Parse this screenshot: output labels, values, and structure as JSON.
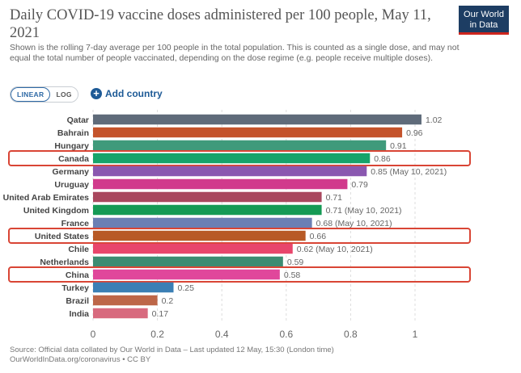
{
  "header": {
    "title": "Daily COVID-19 vaccine doses administered per 100 people, May 11, 2021",
    "subtitle": "Shown is the rolling 7-day average per 100 people in the total population. This is counted as a single dose, and may not equal the total number of people vaccinated, depending on the dose regime (e.g. people receive multiple doses).",
    "logo_line1": "Our World",
    "logo_line2": "in Data"
  },
  "controls": {
    "linear_label": "LINEAR",
    "log_label": "LOG",
    "add_country_label": "Add country"
  },
  "chart_data": {
    "type": "bar",
    "orientation": "horizontal",
    "categories": [
      "Qatar",
      "Bahrain",
      "Hungary",
      "Canada",
      "Germany",
      "Uruguay",
      "United Arab Emirates",
      "United Kingdom",
      "France",
      "United States",
      "Chile",
      "Netherlands",
      "China",
      "Turkey",
      "Brazil",
      "India"
    ],
    "values": [
      1.02,
      0.96,
      0.91,
      0.86,
      0.85,
      0.79,
      0.71,
      0.71,
      0.68,
      0.66,
      0.62,
      0.59,
      0.58,
      0.25,
      0.2,
      0.17
    ],
    "value_labels": [
      "1.02",
      "0.96",
      "0.91",
      "0.86",
      "0.85 (May 10, 2021)",
      "0.79",
      "0.71",
      "0.71 (May 10, 2021)",
      "0.68 (May 10, 2021)",
      "0.66",
      "0.62 (May 10, 2021)",
      "0.59",
      "0.58",
      "0.25",
      "0.2",
      "0.17"
    ],
    "colors": [
      "#5f6b7a",
      "#c4532b",
      "#3f9a7b",
      "#16a36a",
      "#8a58b0",
      "#d13a8c",
      "#a9485e",
      "#159a55",
      "#6b7fb4",
      "#b85a26",
      "#e8466c",
      "#3c8c72",
      "#e0479b",
      "#3b7fb5",
      "#bd6648",
      "#d86a7e"
    ],
    "highlighted": [
      "Canada",
      "United States",
      "China"
    ],
    "highlight_color": "#d94535",
    "xlim": [
      0,
      1.1
    ],
    "xticks": [
      0,
      0.2,
      0.4,
      0.6,
      0.8,
      1
    ],
    "xtick_labels": [
      "0",
      "0.2",
      "0.4",
      "0.6",
      "0.8",
      "1"
    ],
    "grid": true
  },
  "footer": {
    "source_line1": "Source: Official data collated by Our World in Data – Last updated 12 May, 15:30 (London time)",
    "source_line2": "OurWorldInData.org/coronavirus • CC BY"
  }
}
